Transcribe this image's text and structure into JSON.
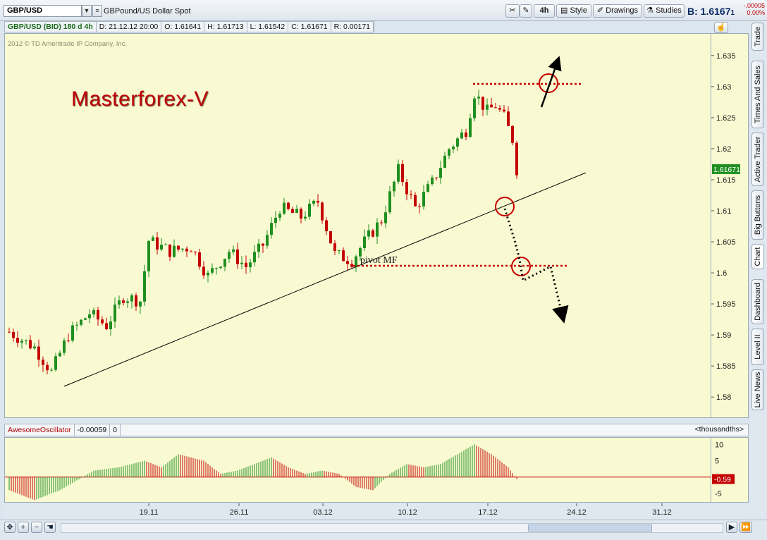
{
  "toolbar": {
    "symbol": "GBP/USD",
    "description": "GBPound/US Dollar Spot",
    "interval": "4h",
    "style_label": "Style",
    "drawings_label": "Drawings",
    "studies_label": "Studies",
    "bid_label": "B:",
    "bid_value": "1.6167",
    "bid_frac": "1",
    "change_abs": "-.00005",
    "change_pct": "0.00%"
  },
  "info": {
    "symbol": "GBP/USD (BID) 180 d 4h",
    "date": "D: 21.12.12 20:00",
    "open": "O: 1.61641",
    "high": "H: 1.61713",
    "low": "L: 1.61542",
    "close": "C: 1.61671",
    "range": "R: 0.00171"
  },
  "copyright": "2012 © TD Ameritrade IP Company, Inc.",
  "brand": "Masterforex-V",
  "annotation": "pivot MF",
  "oscillator": {
    "name": "AwesomeOscillator",
    "value": "-0.00059",
    "extra": "0",
    "units": "<thousandths>",
    "current_label": "-0.59"
  },
  "side_tabs": [
    "Trade",
    "Times And Sales",
    "Active Trader",
    "Big Buttons",
    "Chart",
    "Dashboard",
    "Level II",
    "Live News"
  ],
  "colors": {
    "up": "#1f8f1f",
    "down": "#c40000",
    "marker": "#c40000",
    "background": "#fafad2"
  },
  "chart_data": [
    {
      "type": "candlestick",
      "title": "GBP/USD (BID) 180 d 4h",
      "y_ticks": [
        "1.635",
        "1.63",
        "1.625",
        "1.62",
        "1.615",
        "1.61",
        "1.605",
        "1.6",
        "1.595",
        "1.59",
        "1.585",
        "1.58"
      ],
      "x_ticks": [
        "19.11",
        "26.11",
        "03.12",
        "10.12",
        "17.12",
        "24.12",
        "31.12"
      ],
      "ylim": [
        1.5765,
        1.6385
      ],
      "last_price_label": "1.61671",
      "close_path": [
        [
          0,
          1.5905
        ],
        [
          6,
          1.588
        ],
        [
          10,
          1.584
        ],
        [
          14,
          1.59
        ],
        [
          19,
          1.5935
        ],
        [
          23,
          1.5915
        ],
        [
          27,
          1.5962
        ],
        [
          31,
          1.5955
        ],
        [
          33,
          1.6052
        ],
        [
          38,
          1.6035
        ],
        [
          43,
          1.6042
        ],
        [
          47,
          1.5995
        ],
        [
          52,
          1.6035
        ],
        [
          56,
          1.601
        ],
        [
          60,
          1.6045
        ],
        [
          64,
          1.6105
        ],
        [
          69,
          1.609
        ],
        [
          73,
          1.6115
        ],
        [
          77,
          1.603
        ],
        [
          81,
          1.602
        ],
        [
          84,
          1.605
        ],
        [
          88,
          1.6085
        ],
        [
          92,
          1.6165
        ],
        [
          96,
          1.6105
        ],
        [
          100,
          1.6145
        ],
        [
          104,
          1.62
        ],
        [
          108,
          1.623
        ],
        [
          110,
          1.629
        ],
        [
          113,
          1.626
        ],
        [
          115,
          1.627
        ],
        [
          117,
          1.625
        ],
        [
          119,
          1.6215
        ],
        [
          120,
          1.6167
        ]
      ]
    },
    {
      "type": "bar",
      "title": "AwesomeOscillator",
      "y_ticks": [
        "10",
        "5",
        "-5"
      ],
      "ylim": [
        -8,
        12
      ],
      "values_path": [
        [
          0,
          -4
        ],
        [
          6,
          -7
        ],
        [
          12,
          -4
        ],
        [
          16,
          -1
        ],
        [
          20,
          2
        ],
        [
          26,
          3
        ],
        [
          32,
          5
        ],
        [
          36,
          3
        ],
        [
          40,
          7
        ],
        [
          46,
          5
        ],
        [
          50,
          1
        ],
        [
          54,
          2
        ],
        [
          58,
          4
        ],
        [
          62,
          6
        ],
        [
          66,
          3
        ],
        [
          70,
          1
        ],
        [
          74,
          2
        ],
        [
          78,
          1
        ],
        [
          82,
          -3
        ],
        [
          86,
          -4
        ],
        [
          90,
          1
        ],
        [
          94,
          4
        ],
        [
          98,
          3
        ],
        [
          102,
          4
        ],
        [
          106,
          7
        ],
        [
          110,
          10
        ],
        [
          114,
          7
        ],
        [
          118,
          3
        ],
        [
          120,
          -0.59
        ]
      ]
    }
  ]
}
